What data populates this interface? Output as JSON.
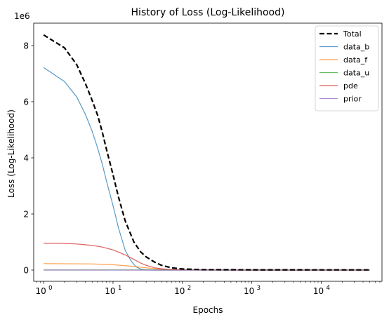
{
  "chart_data": {
    "type": "line",
    "title": "History of Loss (Log-Likelihood)",
    "xlabel": "Epochs",
    "ylabel": "Loss (Log-Likelihood)",
    "xscale": "log",
    "xlim": [
      0.72,
      75000
    ],
    "ylim": [
      -400000,
      8800000
    ],
    "y_scale_label": "1e6",
    "x_tick_labels": [
      {
        "value": 1,
        "base": "10",
        "exp": "0"
      },
      {
        "value": 10,
        "base": "10",
        "exp": "1"
      },
      {
        "value": 100,
        "base": "10",
        "exp": "2"
      },
      {
        "value": 1000,
        "base": "10",
        "exp": "3"
      },
      {
        "value": 10000,
        "base": "10",
        "exp": "4"
      }
    ],
    "y_ticks": [
      0,
      2000000,
      4000000,
      6000000,
      8000000
    ],
    "y_tick_labels": [
      "0",
      "2",
      "4",
      "6",
      "8"
    ],
    "legend_position": "upper right",
    "series": [
      {
        "name": "Total",
        "color": "#000000",
        "style": "dashed",
        "x": [
          1,
          2,
          3,
          4,
          5,
          6,
          7,
          8,
          10,
          12,
          15,
          20,
          25,
          30,
          40,
          50,
          70,
          100,
          200,
          1000,
          10000,
          50000
        ],
        "y": [
          8380000,
          7920000,
          7320000,
          6650000,
          6050000,
          5520000,
          4920000,
          4330000,
          3400000,
          2600000,
          1750000,
          1000000,
          650000,
          470000,
          280000,
          170000,
          80000,
          40000,
          15000,
          10000,
          8000,
          8000
        ]
      },
      {
        "name": "data_b",
        "color": "#1f77b4",
        "style": "solid",
        "x": [
          1,
          2,
          3,
          4,
          5,
          6,
          7,
          8,
          10,
          12,
          15,
          18,
          20,
          22,
          25,
          28,
          35,
          50,
          100,
          1000,
          50000
        ],
        "y": [
          7220000,
          6720000,
          6170000,
          5550000,
          4950000,
          4350000,
          3780000,
          3200000,
          2300000,
          1500000,
          700000,
          350000,
          200000,
          100000,
          40000,
          10000,
          0,
          0,
          0,
          0,
          0
        ]
      },
      {
        "name": "data_f",
        "color": "#ff7f0e",
        "style": "solid",
        "x": [
          1,
          5,
          10,
          20,
          30,
          50,
          70,
          100,
          1000,
          50000
        ],
        "y": [
          230000,
          220000,
          190000,
          130000,
          80000,
          30000,
          10000,
          5000,
          0,
          0
        ]
      },
      {
        "name": "data_u",
        "color": "#2ca02c",
        "style": "solid",
        "x": [
          1,
          50000
        ],
        "y": [
          5000,
          5000
        ]
      },
      {
        "name": "pde",
        "color": "#d62728",
        "style": "solid",
        "x": [
          1,
          2,
          3,
          5,
          7,
          10,
          15,
          20,
          25,
          30,
          40,
          60,
          100,
          200,
          1000,
          50000
        ],
        "y": [
          960000,
          950000,
          930000,
          880000,
          820000,
          720000,
          540000,
          380000,
          250000,
          170000,
          80000,
          25000,
          8000,
          3000,
          0,
          0
        ]
      },
      {
        "name": "prior",
        "color": "#9467bd",
        "style": "solid",
        "x": [
          1,
          50000
        ],
        "y": [
          0,
          0
        ]
      }
    ]
  },
  "colors": {
    "axis": "#000000",
    "legend_border": "#cccccc",
    "background": "#ffffff"
  }
}
